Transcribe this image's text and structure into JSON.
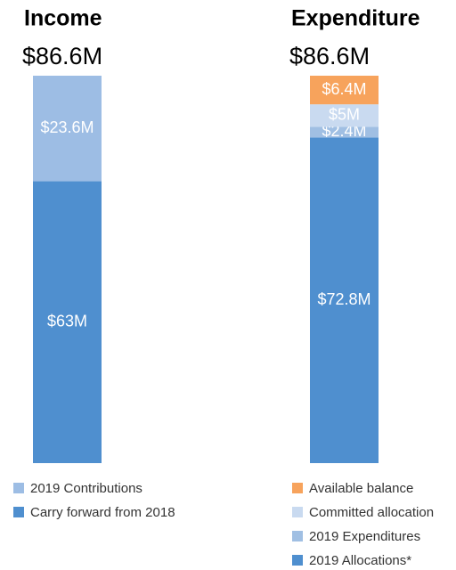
{
  "chart_data": [
    {
      "type": "bar",
      "stacked": true,
      "title": "Income",
      "subtitle": "$86.6M",
      "series": [
        {
          "name": "Carry forward from 2018",
          "color": "#4f8fcf",
          "values": [
            63
          ],
          "value_labels": [
            "$63M"
          ]
        },
        {
          "name": "2019 Contributions",
          "color": "#9dbde4",
          "values": [
            23.6
          ],
          "value_labels": [
            "$23.6M"
          ]
        }
      ]
    },
    {
      "type": "bar",
      "stacked": true,
      "title": "Expenditure",
      "subtitle": "$86.6M",
      "series": [
        {
          "name": "2019 Allocations*",
          "color": "#4f8fcf",
          "values": [
            72.8
          ],
          "value_labels": [
            "$72.8M"
          ]
        },
        {
          "name": "2019 Expenditures",
          "color": "#a0bfe3",
          "values": [
            2.4
          ],
          "value_labels": [
            "$2.4M"
          ]
        },
        {
          "name": "Committed allocation",
          "color": "#c9daf0",
          "values": [
            5
          ],
          "value_labels": [
            "$5M"
          ]
        },
        {
          "name": "Available balance",
          "color": "#f7a35c",
          "values": [
            6.4
          ],
          "value_labels": [
            "$6.4M"
          ]
        }
      ]
    }
  ]
}
